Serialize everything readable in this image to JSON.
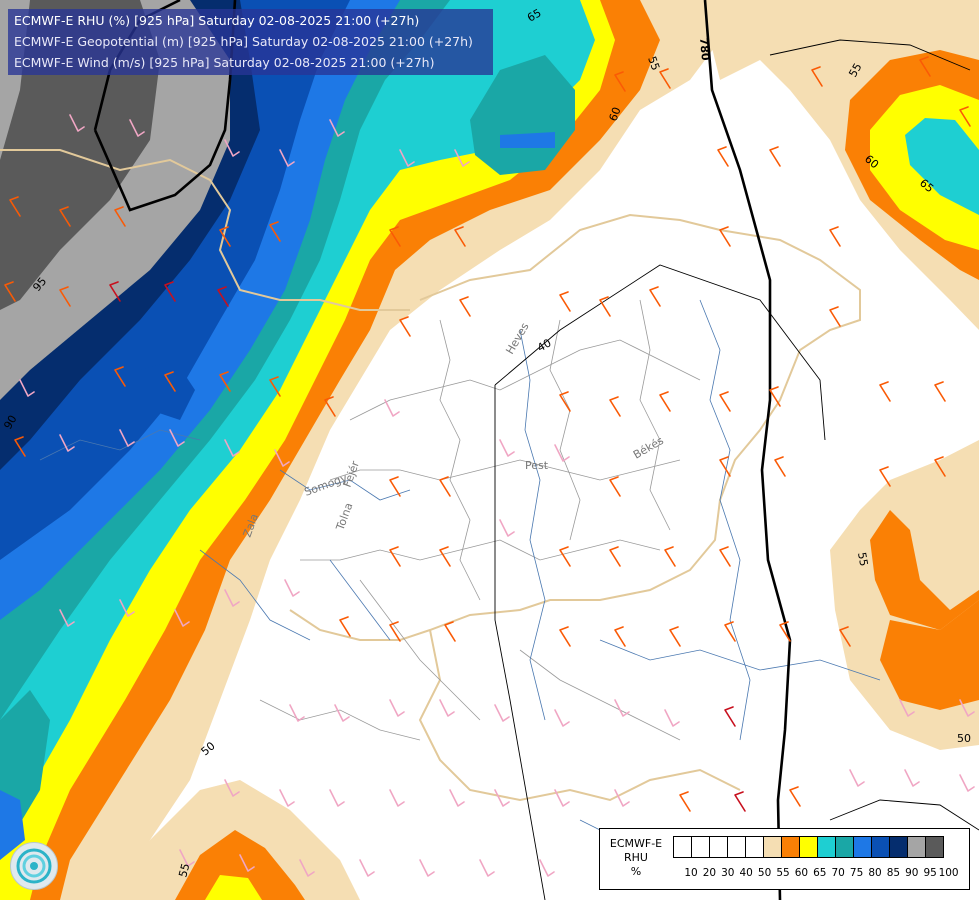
{
  "header": {
    "line1": "ECMWF-E RHU (%) [925 hPa] Saturday 02-08-2025 21:00 (+27h)",
    "line2": "ECMWF-E Geopotential (m) [925 hPa] Saturday 02-08-2025 21:00 (+27h)",
    "line3": "ECMWF-E Wind (m/s) [925 hPa] Saturday 02-08-2025 21:00 (+27h)"
  },
  "legend": {
    "title_line1": "ECMWF-E",
    "title_line2": "RHU",
    "title_line3": "%",
    "ticks": [
      "10",
      "20",
      "30",
      "40",
      "50",
      "55",
      "60",
      "65",
      "70",
      "75",
      "80",
      "85",
      "90",
      "95",
      "100"
    ],
    "colors": [
      "#ffffff",
      "#ffffff",
      "#ffffff",
      "#ffffff",
      "#ffffff",
      "#f5deb3",
      "#fa8005",
      "#ffff00",
      "#1ecfd2",
      "#1aa7a6",
      "#1e78e6",
      "#0a50b4",
      "#052d6e",
      "#a5a5a5",
      "#5a5a5a"
    ]
  },
  "contour_labels": [
    "65",
    "55",
    "60",
    "55",
    "60",
    "65",
    "95",
    "90",
    "40",
    "50",
    "55",
    "55",
    "50"
  ],
  "geopotential_labels": [
    "780"
  ],
  "region_labels": [
    "Heves",
    "Pest",
    "Békés",
    "Fejér",
    "Tolna",
    "Somogy",
    "Zala"
  ],
  "logo": {
    "icon": "ecmwf-logo-icon"
  }
}
